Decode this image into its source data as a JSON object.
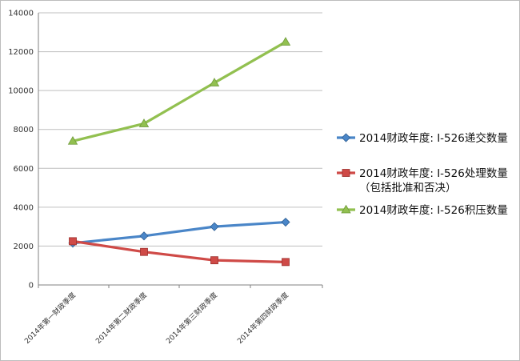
{
  "chart_data": {
    "type": "line",
    "title": "",
    "xlabel": "",
    "ylabel": "",
    "categories": [
      "2014年第一财政季度",
      "2014年第二财政季度",
      "2014年第三财政季度",
      "2014年第四财政季度"
    ],
    "ylim": [
      0,
      14000
    ],
    "yticks": [
      0,
      2000,
      4000,
      6000,
      8000,
      10000,
      12000,
      14000
    ],
    "ytick_labels": [
      "0",
      "2000",
      "4000",
      "6000",
      "8000",
      "10000",
      "12000",
      "14000"
    ],
    "grid": true,
    "legend_position": "right",
    "series": [
      {
        "name": "2014财政年度: I-526递交数量",
        "legend_lines": [
          "2014财政年度: I-526递交数量"
        ],
        "values": [
          2150,
          2520,
          3000,
          3230
        ],
        "color": "#4a86c8",
        "marker": "diamond"
      },
      {
        "name": "2014财政年度: I-526处理数量（包括批准和否决）",
        "legend_lines": [
          "2014财政年度: I-526处理数量",
          "（包括批准和否决）"
        ],
        "values": [
          2250,
          1700,
          1270,
          1180
        ],
        "color": "#cf4a47",
        "marker": "square"
      },
      {
        "name": "2014财政年度: I-526积压数量",
        "legend_lines": [
          "2014财政年度: I-526积压数量"
        ],
        "values": [
          7400,
          8300,
          10400,
          12500
        ],
        "color": "#92c050",
        "marker": "triangle"
      }
    ]
  }
}
